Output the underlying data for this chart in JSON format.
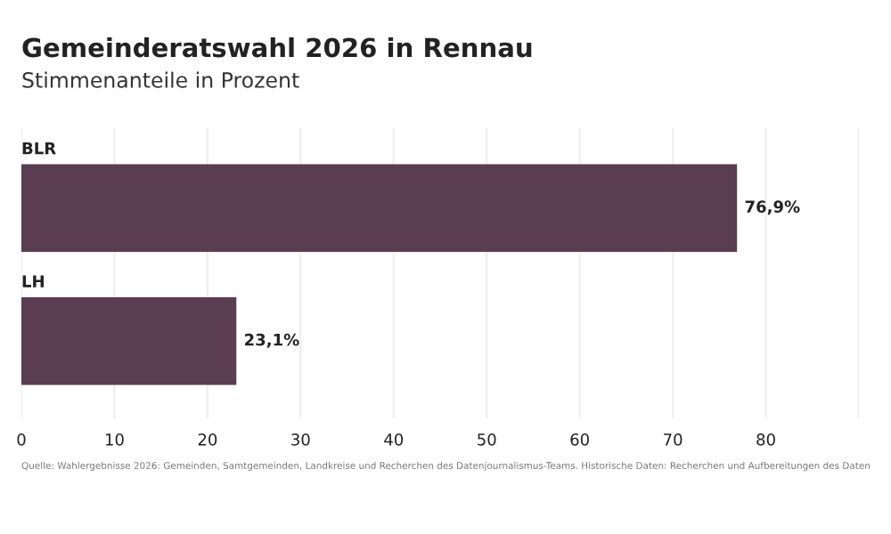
{
  "chart_data": {
    "type": "bar",
    "orientation": "horizontal",
    "title": "Gemeinderatswahl 2026 in Rennau",
    "subtitle": "Stimmenanteile in Prozent",
    "categories": [
      "BLR",
      "LH"
    ],
    "values": [
      76.9,
      23.1
    ],
    "value_labels": [
      "76,9%",
      "23,1%"
    ],
    "color": "#5a3d50",
    "xlim": [
      0,
      90
    ],
    "xticks": [
      0,
      10,
      20,
      30,
      40,
      50,
      60,
      70,
      80,
      {
        "value": 90,
        "label": null
      }
    ],
    "grid": "x",
    "annotations": [
      "Quelle: Wahlergebnisse 2026: Gemeinden, Samtgemeinden, Landkreise und Recherchen des Datenjournalismus-Teams. Historische Daten: Recherchen und Aufbereitungen des Daten"
    ]
  }
}
